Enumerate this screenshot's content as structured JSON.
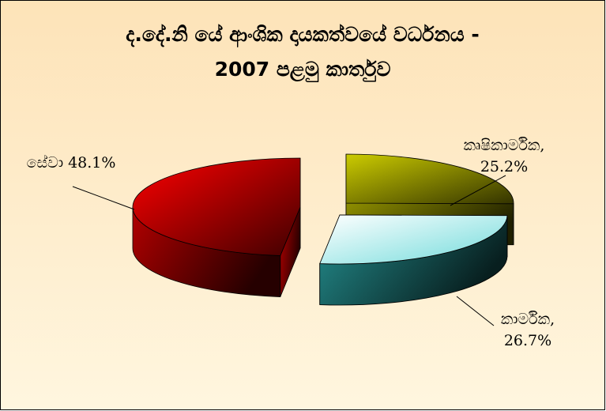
{
  "chart_data": {
    "type": "pie3d",
    "title": "ද.දේ.නි යේ ආංශික දායකත්වයේ වර්ධනය -",
    "subtitle": "2007 පළමු කාර්තුව",
    "categories": [
      "කෘෂිකාර්මික,",
      "කාර්මික,",
      "සේවා"
    ],
    "values": [
      25.2,
      26.7,
      48.1
    ],
    "value_labels": [
      "25.2%",
      "26.7%",
      "48.1%"
    ],
    "colors": [
      "#cccc00",
      "#33cccc",
      "#ff0000"
    ]
  }
}
